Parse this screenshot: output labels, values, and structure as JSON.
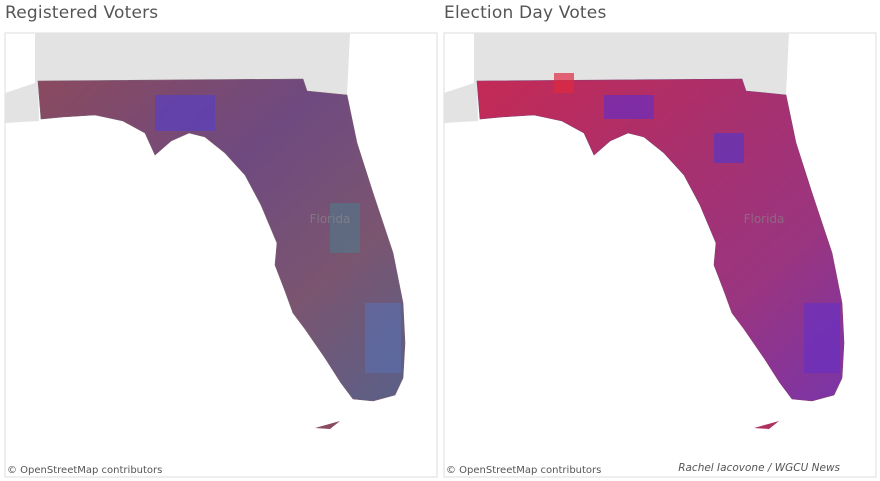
{
  "panels": [
    {
      "title": "Registered Voters",
      "map_label": "Florida",
      "attribution": "© OpenStreetMap contributors"
    },
    {
      "title": "Election Day Votes",
      "map_label": "Florida",
      "attribution": "© OpenStreetMap contributors",
      "credit": "Rachel Iacovone / WGCU News"
    }
  ]
}
